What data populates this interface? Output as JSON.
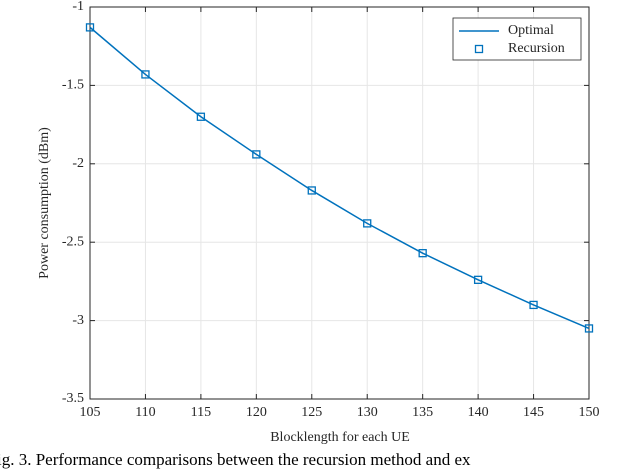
{
  "chart_data": {
    "type": "line",
    "x_label": "Blocklength for each UE",
    "y_label": "Power consumption (dBm)",
    "caption": "ig. 3.  Performance comparisons between the recursion method and ex",
    "x": [
      105,
      110,
      115,
      120,
      125,
      130,
      135,
      140,
      145,
      150
    ],
    "series": [
      {
        "name": "Optimal",
        "color": "#0072bd",
        "line": true,
        "marker": "none",
        "values": [
          -1.13,
          -1.43,
          -1.7,
          -1.94,
          -2.17,
          -2.38,
          -2.57,
          -2.74,
          -2.9,
          -3.05
        ]
      },
      {
        "name": "Recursion",
        "color": "#0072bd",
        "line": false,
        "marker": "square",
        "values": [
          -1.13,
          -1.43,
          -1.7,
          -1.94,
          -2.17,
          -2.38,
          -2.57,
          -2.74,
          -2.9,
          -3.05
        ]
      }
    ],
    "xlim": [
      105,
      150
    ],
    "xticks": [
      105,
      110,
      115,
      120,
      125,
      130,
      135,
      140,
      145,
      150
    ],
    "ylim": [
      -3.5,
      -1
    ],
    "yticks": [
      -3.5,
      -3,
      -2.5,
      -2,
      -1.5,
      -1
    ],
    "grid": true,
    "legend": "top-right"
  }
}
